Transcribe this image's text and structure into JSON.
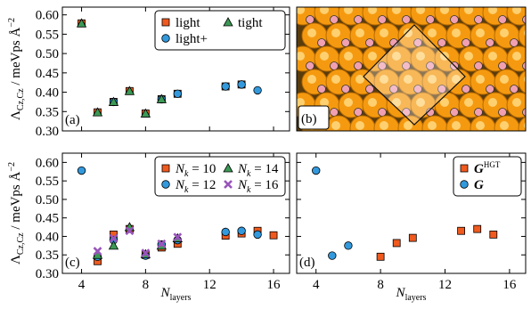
{
  "chart_data": [
    {
      "type": "scatter",
      "panel_label": "(a)",
      "ylabel": {
        "main": "Λ",
        "sub": "Cz,Cz",
        "rest": " / meVps Å",
        "sup": "−2"
      },
      "xlim": [
        2.8,
        17
      ],
      "xticks": [
        4,
        8,
        12,
        16
      ],
      "xtick_labels": false,
      "ylim": [
        0.3,
        0.62
      ],
      "yticks": [
        {
          "value": 0.3,
          "label": "0.30"
        },
        {
          "value": 0.35,
          "label": "0.35"
        },
        {
          "value": 0.4,
          "label": "0.40"
        },
        {
          "value": 0.45,
          "label": "0.45"
        },
        {
          "value": 0.5,
          "label": "0.50"
        },
        {
          "value": 0.55,
          "label": "0.55"
        },
        {
          "value": 0.6,
          "label": "0.60"
        }
      ],
      "legend": "upper right",
      "legend_columns": 2,
      "series": [
        {
          "name": "light",
          "marker": "square",
          "color": "#f05a1e",
          "x": [
            4,
            5,
            6,
            7,
            8,
            9,
            10,
            13,
            14
          ],
          "values": [
            0.578,
            0.348,
            0.375,
            0.403,
            0.345,
            0.382,
            0.396,
            0.415,
            0.42
          ]
        },
        {
          "name": "light+",
          "marker": "circle",
          "color": "#3399dd",
          "x": [
            6,
            9,
            10,
            13,
            14,
            15
          ],
          "values": [
            0.375,
            0.382,
            0.396,
            0.415,
            0.42,
            0.405
          ]
        },
        {
          "name": "tight",
          "marker": "triangle",
          "color": "#3c9a55",
          "x": [
            4,
            5,
            6,
            7,
            8,
            9
          ],
          "values": [
            0.578,
            0.348,
            0.375,
            0.403,
            0.345,
            0.382
          ]
        }
      ]
    },
    {
      "type": "image",
      "panel_label": "(b)"
    },
    {
      "type": "scatter",
      "panel_label": "(c)",
      "ylabel": {
        "main": "Λ",
        "sub": "Cz,Cz",
        "rest": " / meVps Å",
        "sup": "−2"
      },
      "xlabel": {
        "main": "N",
        "sub": "layers"
      },
      "xlim": [
        2.8,
        17
      ],
      "xticks": [
        4,
        8,
        12,
        16
      ],
      "ylim": [
        0.3,
        0.625
      ],
      "yticks": [
        {
          "value": 0.3,
          "label": "0.30"
        },
        {
          "value": 0.35,
          "label": "0.35"
        },
        {
          "value": 0.4,
          "label": "0.40"
        },
        {
          "value": 0.45,
          "label": "0.45"
        },
        {
          "value": 0.5,
          "label": "0.50"
        },
        {
          "value": 0.55,
          "label": "0.55"
        },
        {
          "value": 0.6,
          "label": "0.60"
        }
      ],
      "legend": "upper right",
      "legend_columns": 2,
      "series": [
        {
          "name": "N",
          "name_sub": "k",
          "name_tail": " = 10",
          "marker": "square",
          "color": "#f05a1e",
          "x": [
            5,
            6,
            7,
            8,
            9,
            10,
            13,
            14,
            15,
            16
          ],
          "values": [
            0.333,
            0.405,
            0.42,
            0.35,
            0.37,
            0.38,
            0.402,
            0.408,
            0.415,
            0.403
          ]
        },
        {
          "name": "N",
          "name_sub": "k",
          "name_tail": " = 12",
          "marker": "circle",
          "color": "#3399dd",
          "x": [
            4,
            5,
            6,
            8,
            9,
            10,
            13,
            14,
            15
          ],
          "values": [
            0.578,
            0.345,
            0.39,
            0.348,
            0.378,
            0.39,
            0.412,
            0.415,
            0.405
          ]
        },
        {
          "name": "N",
          "name_sub": "k",
          "name_tail": " = 14",
          "marker": "triangle",
          "color": "#3c9a55",
          "x": [
            5,
            6,
            7,
            8,
            9,
            10
          ],
          "values": [
            0.35,
            0.375,
            0.425,
            0.352,
            0.375,
            0.395
          ]
        },
        {
          "name": "N",
          "name_sub": "k",
          "name_tail": " = 16",
          "marker": "x",
          "color": "#9955bb",
          "x": [
            5,
            6,
            7,
            8,
            9,
            10
          ],
          "values": [
            0.36,
            0.395,
            0.415,
            0.355,
            0.38,
            0.398
          ]
        }
      ]
    },
    {
      "type": "scatter",
      "panel_label": "(d)",
      "xlabel": {
        "main": "N",
        "sub": "layers"
      },
      "xlim": [
        2.8,
        17
      ],
      "xticks": [
        4,
        8,
        12,
        16
      ],
      "ylim": [
        0.3,
        0.625
      ],
      "yticks": [
        0.3,
        0.35,
        0.4,
        0.45,
        0.5,
        0.55,
        0.6
      ],
      "ytick_labels": false,
      "legend": "upper right",
      "legend_columns": 1,
      "series": [
        {
          "name": "G",
          "name_sup": "HGT",
          "bold": true,
          "marker": "square",
          "color": "#f05a1e",
          "x": [
            8,
            9,
            10,
            13,
            14,
            15
          ],
          "values": [
            0.345,
            0.382,
            0.396,
            0.415,
            0.42,
            0.405
          ]
        },
        {
          "name": "G",
          "bold": true,
          "marker": "circle",
          "color": "#3399dd",
          "x": [
            4,
            5,
            6
          ],
          "values": [
            0.578,
            0.348,
            0.375
          ]
        }
      ]
    }
  ]
}
